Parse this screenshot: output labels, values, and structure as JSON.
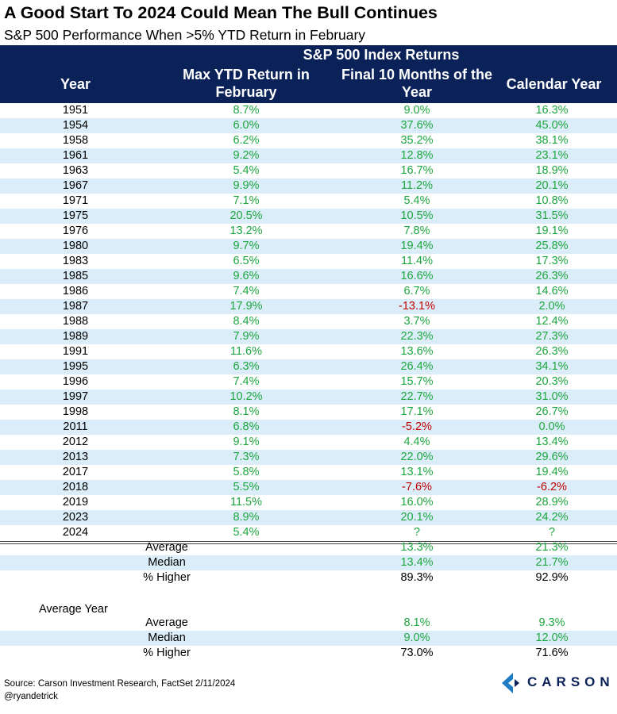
{
  "title": "A Good Start To 2024 Could Mean The Bull Continues",
  "subtitle": "S&P 500 Performance When >5% YTD Return in February",
  "header": {
    "group": "S&P 500 Index Returns",
    "year": "Year",
    "max_ytd": "Max YTD Return in February",
    "final_10": "Final 10 Months of the Year",
    "calendar": "Calendar Year"
  },
  "chart_data": {
    "type": "table",
    "columns": [
      "Year",
      "Max YTD Return in February",
      "Final 10 Months of the Year",
      "Calendar Year"
    ],
    "rows": [
      [
        "1951",
        "8.7%",
        "9.0%",
        "16.3%"
      ],
      [
        "1954",
        "6.0%",
        "37.6%",
        "45.0%"
      ],
      [
        "1958",
        "6.2%",
        "35.2%",
        "38.1%"
      ],
      [
        "1961",
        "9.2%",
        "12.8%",
        "23.1%"
      ],
      [
        "1963",
        "5.4%",
        "16.7%",
        "18.9%"
      ],
      [
        "1967",
        "9.9%",
        "11.2%",
        "20.1%"
      ],
      [
        "1971",
        "7.1%",
        "5.4%",
        "10.8%"
      ],
      [
        "1975",
        "20.5%",
        "10.5%",
        "31.5%"
      ],
      [
        "1976",
        "13.2%",
        "7.8%",
        "19.1%"
      ],
      [
        "1980",
        "9.7%",
        "19.4%",
        "25.8%"
      ],
      [
        "1983",
        "6.5%",
        "11.4%",
        "17.3%"
      ],
      [
        "1985",
        "9.6%",
        "16.6%",
        "26.3%"
      ],
      [
        "1986",
        "7.4%",
        "6.7%",
        "14.6%"
      ],
      [
        "1987",
        "17.9%",
        "-13.1%",
        "2.0%"
      ],
      [
        "1988",
        "8.4%",
        "3.7%",
        "12.4%"
      ],
      [
        "1989",
        "7.9%",
        "22.3%",
        "27.3%"
      ],
      [
        "1991",
        "11.6%",
        "13.6%",
        "26.3%"
      ],
      [
        "1995",
        "6.3%",
        "26.4%",
        "34.1%"
      ],
      [
        "1996",
        "7.4%",
        "15.7%",
        "20.3%"
      ],
      [
        "1997",
        "10.2%",
        "22.7%",
        "31.0%"
      ],
      [
        "1998",
        "8.1%",
        "17.1%",
        "26.7%"
      ],
      [
        "2011",
        "6.8%",
        "-5.2%",
        "0.0%"
      ],
      [
        "2012",
        "9.1%",
        "4.4%",
        "13.4%"
      ],
      [
        "2013",
        "7.3%",
        "22.0%",
        "29.6%"
      ],
      [
        "2017",
        "5.8%",
        "13.1%",
        "19.4%"
      ],
      [
        "2018",
        "5.5%",
        "-7.6%",
        "-6.2%"
      ],
      [
        "2019",
        "11.5%",
        "16.0%",
        "28.9%"
      ],
      [
        "2023",
        "8.9%",
        "20.1%",
        "24.2%"
      ],
      [
        "2024",
        "5.4%",
        "?",
        "?"
      ]
    ],
    "summary": [
      {
        "label": "Average",
        "final_10": "13.3%",
        "calendar": "21.3%"
      },
      {
        "label": "Median",
        "final_10": "13.4%",
        "calendar": "21.7%"
      },
      {
        "label": "% Higher",
        "final_10": "89.3%",
        "calendar": "92.9%"
      }
    ],
    "average_year": {
      "label": "Average Year",
      "rows": [
        {
          "label": "Average",
          "final_10": "8.1%",
          "calendar": "9.3%"
        },
        {
          "label": "Median",
          "final_10": "9.0%",
          "calendar": "12.0%"
        },
        {
          "label": "% Higher",
          "final_10": "73.0%",
          "calendar": "71.6%"
        }
      ]
    }
  },
  "colors": {
    "header_bg": "#0b2259",
    "row_shade": "#dbedf8",
    "positive": "#1ea63f",
    "negative": "#c00000"
  },
  "footer": {
    "source": "Source: Carson Investment Research, FactSet 2/11/2024",
    "handle": "@ryandetrick",
    "logo_text": "CARSON"
  }
}
